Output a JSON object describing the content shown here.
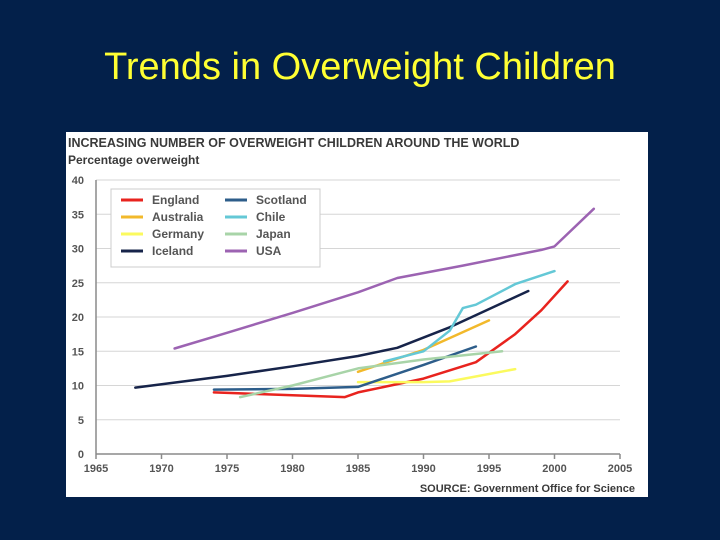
{
  "slide": {
    "title": "Trends in Overweight Children"
  },
  "chart_data": {
    "type": "line",
    "title": "INCREASING NUMBER OF OVERWEIGHT CHILDREN AROUND THE WORLD",
    "ylabel": "Percentage overweight",
    "xlabel": "",
    "source": "SOURCE: Government Office for Science",
    "xlim": [
      1965,
      2005
    ],
    "ylim": [
      0,
      40
    ],
    "xticks": [
      1965,
      1970,
      1975,
      1980,
      1985,
      1990,
      1995,
      2000,
      2005
    ],
    "yticks": [
      0,
      5,
      10,
      15,
      20,
      25,
      30,
      35,
      40
    ],
    "grid": true,
    "legend_position": "top-left",
    "series": [
      {
        "name": "England",
        "color": "#e8231e",
        "points": [
          [
            1974,
            9
          ],
          [
            1984,
            8.3
          ],
          [
            1985,
            9
          ],
          [
            1990,
            11
          ],
          [
            1994,
            13.4
          ],
          [
            1997,
            17.5
          ],
          [
            1999,
            21
          ],
          [
            2001,
            25.2
          ]
        ]
      },
      {
        "name": "Australia",
        "color": "#f2b92b",
        "points": [
          [
            1985,
            12
          ],
          [
            1990,
            15.2
          ],
          [
            1995,
            19.5
          ]
        ]
      },
      {
        "name": "Germany",
        "color": "#fbfa5e",
        "points": [
          [
            1985,
            10.5
          ],
          [
            1990,
            10.5
          ],
          [
            1992,
            10.6
          ],
          [
            1997,
            12.4
          ]
        ]
      },
      {
        "name": "Iceland",
        "color": "#17244a",
        "points": [
          [
            1968,
            9.7
          ],
          [
            1975,
            11.4
          ],
          [
            1980,
            12.8
          ],
          [
            1985,
            14.3
          ],
          [
            1988,
            15.5
          ],
          [
            1992,
            18.5
          ],
          [
            1998,
            23.8
          ]
        ]
      },
      {
        "name": "Scotland",
        "color": "#2d5d8a",
        "points": [
          [
            1974,
            9.4
          ],
          [
            1980,
            9.5
          ],
          [
            1985,
            9.8
          ],
          [
            1990,
            13
          ],
          [
            1994,
            15.7
          ]
        ]
      },
      {
        "name": "Chile",
        "color": "#64c8d6",
        "points": [
          [
            1987,
            13.5
          ],
          [
            1990,
            15
          ],
          [
            1992,
            18
          ],
          [
            1993,
            21.3
          ],
          [
            1994,
            21.8
          ],
          [
            1997,
            24.8
          ],
          [
            2000,
            26.7
          ]
        ]
      },
      {
        "name": "Japan",
        "color": "#a8d4a8",
        "points": [
          [
            1976,
            8.3
          ],
          [
            1980,
            10
          ],
          [
            1985,
            12.5
          ],
          [
            1990,
            13.8
          ],
          [
            1996,
            15
          ]
        ]
      },
      {
        "name": "USA",
        "color": "#9c63b2",
        "points": [
          [
            1971,
            15.4
          ],
          [
            1975,
            17.7
          ],
          [
            1980,
            20.6
          ],
          [
            1985,
            23.6
          ],
          [
            1988,
            25.7
          ],
          [
            1993,
            27.5
          ],
          [
            1999,
            29.8
          ],
          [
            2000,
            30.3
          ],
          [
            2003,
            35.8
          ]
        ]
      }
    ]
  }
}
